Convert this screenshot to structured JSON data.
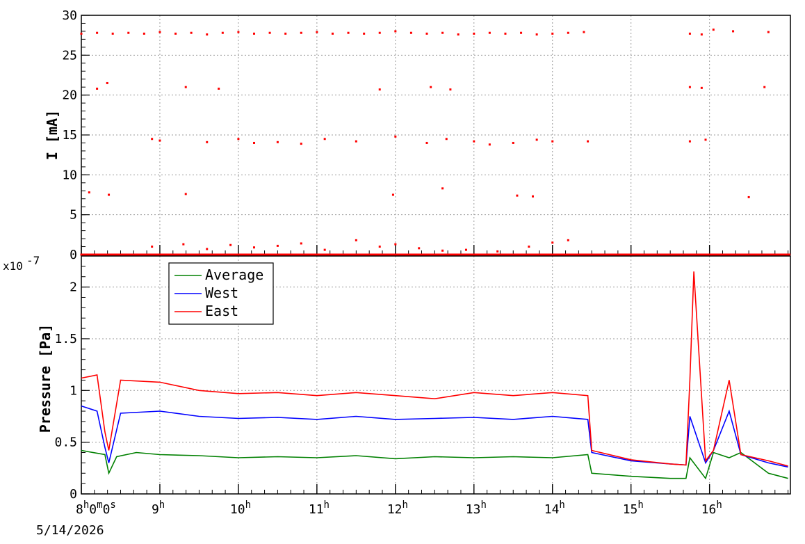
{
  "chart_data": [
    {
      "type": "scatter",
      "ylabel": "I [mA]",
      "ylim": [
        0,
        30
      ],
      "yticks": [
        "0",
        "5",
        "10",
        "15",
        "20",
        "25",
        "30"
      ],
      "grid": true,
      "series": [
        {
          "color": "#ff0000",
          "points": [
            [
              8.0,
              27.7
            ],
            [
              8.2,
              27.8
            ],
            [
              8.4,
              27.7
            ],
            [
              8.6,
              27.8
            ],
            [
              8.8,
              27.7
            ],
            [
              9.0,
              27.9
            ],
            [
              9.2,
              27.7
            ],
            [
              9.4,
              27.8
            ],
            [
              9.6,
              27.6
            ],
            [
              9.8,
              27.8
            ],
            [
              10.0,
              27.9
            ],
            [
              10.2,
              27.7
            ],
            [
              10.4,
              27.8
            ],
            [
              10.6,
              27.7
            ],
            [
              10.8,
              27.8
            ],
            [
              11.0,
              27.9
            ],
            [
              11.2,
              27.7
            ],
            [
              11.4,
              27.8
            ],
            [
              11.6,
              27.7
            ],
            [
              11.8,
              27.8
            ],
            [
              12.0,
              28.0
            ],
            [
              12.2,
              27.8
            ],
            [
              12.4,
              27.7
            ],
            [
              12.6,
              27.8
            ],
            [
              12.8,
              27.6
            ],
            [
              13.0,
              27.7
            ],
            [
              13.2,
              27.8
            ],
            [
              13.4,
              27.7
            ],
            [
              13.6,
              27.8
            ],
            [
              13.8,
              27.6
            ],
            [
              14.0,
              27.7
            ],
            [
              14.2,
              27.8
            ],
            [
              14.4,
              27.9
            ],
            [
              15.75,
              27.7
            ],
            [
              15.9,
              27.6
            ],
            [
              16.3,
              28.0
            ],
            [
              16.75,
              27.9
            ],
            [
              8.1,
              7.8
            ],
            [
              8.2,
              20.8
            ],
            [
              8.35,
              7.5
            ],
            [
              8.33,
              21.5
            ],
            [
              8.9,
              14.5
            ],
            [
              9.0,
              14.3
            ],
            [
              9.33,
              21.0
            ],
            [
              9.33,
              7.6
            ],
            [
              9.6,
              14.1
            ],
            [
              9.75,
              20.8
            ],
            [
              10.0,
              14.5
            ],
            [
              10.2,
              14.0
            ],
            [
              10.5,
              14.1
            ],
            [
              10.8,
              13.9
            ],
            [
              11.1,
              14.5
            ],
            [
              11.5,
              14.2
            ],
            [
              11.8,
              20.7
            ],
            [
              12.0,
              14.8
            ],
            [
              11.97,
              7.5
            ],
            [
              12.4,
              14.0
            ],
            [
              12.45,
              21.0
            ],
            [
              12.6,
              8.3
            ],
            [
              12.65,
              14.5
            ],
            [
              12.7,
              20.7
            ],
            [
              13.0,
              14.2
            ],
            [
              13.2,
              13.8
            ],
            [
              13.55,
              7.4
            ],
            [
              13.5,
              14.0
            ],
            [
              13.75,
              7.3
            ],
            [
              13.8,
              14.4
            ],
            [
              14.0,
              14.2
            ],
            [
              14.45,
              14.2
            ],
            [
              15.75,
              21.0
            ],
            [
              15.75,
              14.2
            ],
            [
              15.9,
              20.9
            ],
            [
              15.95,
              14.4
            ],
            [
              16.05,
              28.2
            ],
            [
              16.5,
              7.2
            ],
            [
              16.7,
              21.0
            ],
            [
              8.9,
              1.0
            ],
            [
              9.3,
              1.3
            ],
            [
              9.6,
              0.7
            ],
            [
              9.9,
              1.2
            ],
            [
              10.2,
              0.9
            ],
            [
              10.5,
              1.1
            ],
            [
              10.8,
              1.4
            ],
            [
              11.1,
              0.6
            ],
            [
              11.5,
              1.8
            ],
            [
              11.8,
              1.0
            ],
            [
              12.0,
              1.3
            ],
            [
              12.3,
              0.8
            ],
            [
              12.6,
              0.5
            ],
            [
              12.9,
              0.6
            ],
            [
              13.3,
              0.4
            ],
            [
              13.7,
              1.0
            ],
            [
              14.0,
              1.5
            ],
            [
              14.2,
              1.8
            ],
            [
              8.0,
              0.0
            ],
            [
              9.0,
              0.0
            ],
            [
              10.0,
              0.0
            ],
            [
              11.0,
              0.0
            ],
            [
              12.0,
              0.0
            ],
            [
              13.0,
              0.0
            ],
            [
              14.0,
              0.0
            ],
            [
              15.0,
              0.0
            ],
            [
              16.0,
              0.0
            ],
            [
              17.0,
              0.0
            ]
          ]
        }
      ]
    },
    {
      "type": "line",
      "ylabel": "Pressure [Pa]",
      "y_exponent": "x10",
      "y_exponent_power": "-7",
      "ylim": [
        0,
        2.3
      ],
      "yticks": [
        "0",
        "0.5",
        "1",
        "1.5",
        "2"
      ],
      "x_origin_label": "8",
      "x_origin_suffix": "s",
      "x_date_label": "5/14/2026",
      "xlim": [
        8.0,
        17.03
      ],
      "xticks_hours": [
        "8",
        "9",
        "10",
        "11",
        "12",
        "13",
        "14",
        "15",
        "16"
      ],
      "hour_unit": "h",
      "minute_unit": "m",
      "origin_seconds": "0",
      "origin_minutes": "0",
      "grid": true,
      "legend_position": "top-left",
      "legend": [
        "Average",
        "West",
        "East"
      ],
      "series": [
        {
          "name": "Average",
          "color": "#008000",
          "x": [
            8.0,
            8.3,
            8.35,
            8.45,
            8.7,
            9.0,
            9.5,
            10.0,
            10.5,
            11.0,
            11.5,
            12.0,
            12.5,
            13.0,
            13.5,
            14.0,
            14.45,
            14.5,
            15.0,
            15.5,
            15.7,
            15.75,
            15.95,
            16.05,
            16.25,
            16.4,
            16.75,
            17.0
          ],
          "y": [
            0.42,
            0.38,
            0.2,
            0.36,
            0.4,
            0.38,
            0.37,
            0.35,
            0.36,
            0.35,
            0.37,
            0.34,
            0.36,
            0.35,
            0.36,
            0.35,
            0.38,
            0.2,
            0.17,
            0.15,
            0.15,
            0.35,
            0.15,
            0.4,
            0.35,
            0.4,
            0.2,
            0.15
          ]
        },
        {
          "name": "West",
          "color": "#0000ff",
          "x": [
            8.0,
            8.2,
            8.3,
            8.35,
            8.5,
            9.0,
            9.5,
            10.0,
            10.5,
            11.0,
            11.5,
            12.0,
            12.5,
            13.0,
            13.5,
            14.0,
            14.45,
            14.5,
            15.0,
            15.5,
            15.7,
            15.75,
            15.95,
            16.05,
            16.25,
            16.4,
            16.75,
            17.0
          ],
          "y": [
            0.85,
            0.8,
            0.45,
            0.3,
            0.78,
            0.8,
            0.75,
            0.73,
            0.74,
            0.72,
            0.75,
            0.72,
            0.73,
            0.74,
            0.72,
            0.75,
            0.72,
            0.4,
            0.32,
            0.29,
            0.28,
            0.75,
            0.3,
            0.42,
            0.8,
            0.38,
            0.3,
            0.26
          ]
        },
        {
          "name": "East",
          "color": "#ff0000",
          "x": [
            8.0,
            8.2,
            8.3,
            8.35,
            8.5,
            9.0,
            9.5,
            10.0,
            10.5,
            11.0,
            11.5,
            12.0,
            12.5,
            13.0,
            13.5,
            14.0,
            14.45,
            14.5,
            15.0,
            15.5,
            15.7,
            15.75,
            15.8,
            15.95,
            16.05,
            16.25,
            16.4,
            16.75,
            17.0
          ],
          "y": [
            1.12,
            1.15,
            0.6,
            0.42,
            1.1,
            1.08,
            1.0,
            0.97,
            0.98,
            0.95,
            0.98,
            0.95,
            0.92,
            0.98,
            0.95,
            0.98,
            0.95,
            0.42,
            0.33,
            0.29,
            0.28,
            1.1,
            2.15,
            0.32,
            0.42,
            1.1,
            0.38,
            0.32,
            0.27
          ]
        }
      ]
    }
  ]
}
